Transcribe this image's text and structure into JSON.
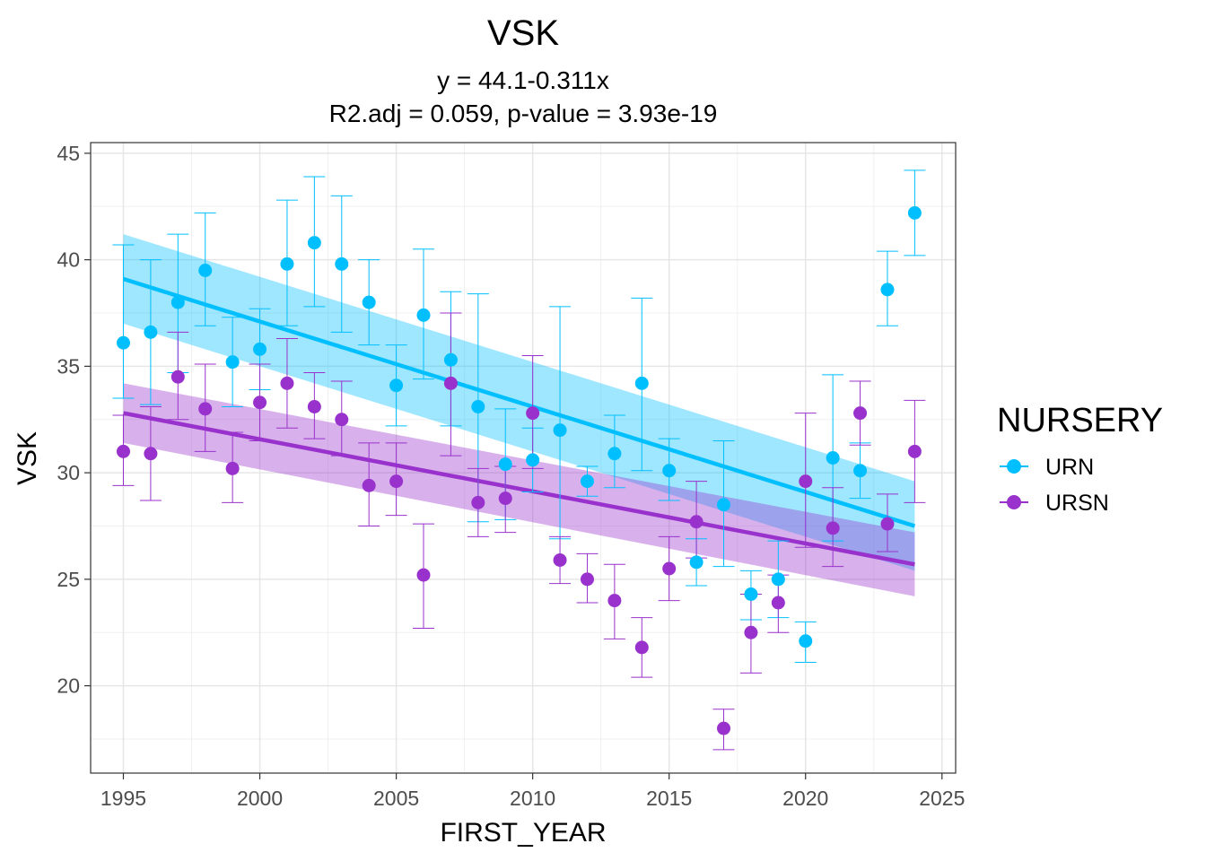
{
  "chart_data": {
    "type": "scatter",
    "title": "VSK",
    "subtitle_lines": [
      "y = 44.1-0.311x",
      "R2.adj = 0.059, p-value = 3.93e-19"
    ],
    "xlabel": "FIRST_YEAR",
    "ylabel": "VSK",
    "xlim": [
      1993.8,
      2025.5
    ],
    "ylim": [
      15.9,
      45.5
    ],
    "x_ticks": [
      1995,
      2000,
      2005,
      2010,
      2015,
      2020,
      2025
    ],
    "y_ticks": [
      20,
      25,
      30,
      35,
      40,
      45
    ],
    "grid": true,
    "legend": {
      "title": "NURSERY",
      "position": "right"
    },
    "series": [
      {
        "name": "URN",
        "color": "#00BFFF",
        "points": [
          {
            "x": 1995,
            "y": 36.1,
            "lo": 33.5,
            "hi": 40.7
          },
          {
            "x": 1996,
            "y": 36.6,
            "lo": 33.2,
            "hi": 40.0
          },
          {
            "x": 1997,
            "y": 38.0,
            "lo": 34.7,
            "hi": 41.2
          },
          {
            "x": 1998,
            "y": 39.5,
            "lo": 36.9,
            "hi": 42.2
          },
          {
            "x": 1999,
            "y": 35.2,
            "lo": 33.1,
            "hi": 37.3
          },
          {
            "x": 2000,
            "y": 35.8,
            "lo": 33.9,
            "hi": 37.7
          },
          {
            "x": 2001,
            "y": 39.8,
            "lo": 36.9,
            "hi": 42.8
          },
          {
            "x": 2002,
            "y": 40.8,
            "lo": 37.8,
            "hi": 43.9
          },
          {
            "x": 2003,
            "y": 39.8,
            "lo": 36.6,
            "hi": 43.0
          },
          {
            "x": 2004,
            "y": 38.0,
            "lo": 36.0,
            "hi": 40.0
          },
          {
            "x": 2005,
            "y": 34.1,
            "lo": 32.2,
            "hi": 36.0
          },
          {
            "x": 2006,
            "y": 37.4,
            "lo": 34.4,
            "hi": 40.5
          },
          {
            "x": 2007,
            "y": 35.3,
            "lo": 32.2,
            "hi": 38.5
          },
          {
            "x": 2008,
            "y": 33.1,
            "lo": 27.7,
            "hi": 38.4
          },
          {
            "x": 2009,
            "y": 30.4,
            "lo": 27.8,
            "hi": 33.0
          },
          {
            "x": 2010,
            "y": 30.6,
            "lo": 29.1,
            "hi": 32.1
          },
          {
            "x": 2011,
            "y": 32.0,
            "lo": 26.9,
            "hi": 37.8
          },
          {
            "x": 2012,
            "y": 29.6,
            "lo": 28.9,
            "hi": 30.3
          },
          {
            "x": 2013,
            "y": 30.9,
            "lo": 29.3,
            "hi": 32.7
          },
          {
            "x": 2014,
            "y": 34.2,
            "lo": 30.1,
            "hi": 38.2
          },
          {
            "x": 2015,
            "y": 30.1,
            "lo": 28.7,
            "hi": 31.6
          },
          {
            "x": 2016,
            "y": 25.8,
            "lo": 24.7,
            "hi": 26.9
          },
          {
            "x": 2017,
            "y": 28.5,
            "lo": 25.6,
            "hi": 31.5
          },
          {
            "x": 2018,
            "y": 24.3,
            "lo": 23.1,
            "hi": 25.4
          },
          {
            "x": 2019,
            "y": 25.0,
            "lo": 23.2,
            "hi": 26.8
          },
          {
            "x": 2020,
            "y": 22.1,
            "lo": 21.1,
            "hi": 23.0
          },
          {
            "x": 2021,
            "y": 30.7,
            "lo": 26.8,
            "hi": 34.6
          },
          {
            "x": 2022,
            "y": 30.1,
            "lo": 28.8,
            "hi": 31.4
          },
          {
            "x": 2023,
            "y": 38.6,
            "lo": 36.9,
            "hi": 40.4
          },
          {
            "x": 2024,
            "y": 42.2,
            "lo": 40.2,
            "hi": 44.2
          }
        ],
        "trend": {
          "x": [
            1995,
            2024
          ],
          "y": [
            39.1,
            27.5
          ],
          "band_lo": [
            37.0,
            25.4
          ],
          "band_hi": [
            41.2,
            29.6
          ]
        }
      },
      {
        "name": "URSN",
        "color": "#9932CC",
        "points": [
          {
            "x": 1995,
            "y": 31.0,
            "lo": 29.4,
            "hi": 32.7
          },
          {
            "x": 1996,
            "y": 30.9,
            "lo": 28.7,
            "hi": 33.1
          },
          {
            "x": 1997,
            "y": 34.5,
            "lo": 32.5,
            "hi": 36.6
          },
          {
            "x": 1998,
            "y": 33.0,
            "lo": 31.0,
            "hi": 35.1
          },
          {
            "x": 1999,
            "y": 30.2,
            "lo": 28.6,
            "hi": 31.9
          },
          {
            "x": 2000,
            "y": 33.3,
            "lo": 31.5,
            "hi": 35.1
          },
          {
            "x": 2001,
            "y": 34.2,
            "lo": 32.1,
            "hi": 36.3
          },
          {
            "x": 2002,
            "y": 33.1,
            "lo": 31.6,
            "hi": 34.7
          },
          {
            "x": 2003,
            "y": 32.5,
            "lo": 30.8,
            "hi": 34.3
          },
          {
            "x": 2004,
            "y": 29.4,
            "lo": 27.5,
            "hi": 31.4
          },
          {
            "x": 2005,
            "y": 29.6,
            "lo": 28.0,
            "hi": 31.4
          },
          {
            "x": 2006,
            "y": 25.2,
            "lo": 22.7,
            "hi": 27.6
          },
          {
            "x": 2007,
            "y": 34.2,
            "lo": 30.8,
            "hi": 37.5
          },
          {
            "x": 2008,
            "y": 28.6,
            "lo": 27.0,
            "hi": 30.2
          },
          {
            "x": 2009,
            "y": 28.8,
            "lo": 27.2,
            "hi": 30.3
          },
          {
            "x": 2010,
            "y": 32.8,
            "lo": 30.2,
            "hi": 35.5
          },
          {
            "x": 2011,
            "y": 25.9,
            "lo": 24.8,
            "hi": 27.0
          },
          {
            "x": 2012,
            "y": 25.0,
            "lo": 23.9,
            "hi": 26.2
          },
          {
            "x": 2013,
            "y": 24.0,
            "lo": 22.2,
            "hi": 25.7
          },
          {
            "x": 2014,
            "y": 21.8,
            "lo": 20.4,
            "hi": 23.2
          },
          {
            "x": 2015,
            "y": 25.5,
            "lo": 24.0,
            "hi": 27.0
          },
          {
            "x": 2016,
            "y": 27.7,
            "lo": 26.0,
            "hi": 29.6
          },
          {
            "x": 2017,
            "y": 18.0,
            "lo": 17.0,
            "hi": 18.9
          },
          {
            "x": 2018,
            "y": 22.5,
            "lo": 20.6,
            "hi": 24.3
          },
          {
            "x": 2019,
            "y": 23.9,
            "lo": 22.5,
            "hi": 25.2
          },
          {
            "x": 2020,
            "y": 29.6,
            "lo": 26.5,
            "hi": 32.8
          },
          {
            "x": 2021,
            "y": 27.4,
            "lo": 25.6,
            "hi": 29.3
          },
          {
            "x": 2022,
            "y": 32.8,
            "lo": 31.3,
            "hi": 34.3
          },
          {
            "x": 2023,
            "y": 27.6,
            "lo": 26.3,
            "hi": 29.0
          },
          {
            "x": 2024,
            "y": 31.0,
            "lo": 28.6,
            "hi": 33.4
          }
        ],
        "trend": {
          "x": [
            1995,
            2024
          ],
          "y": [
            32.8,
            25.7
          ],
          "band_lo": [
            31.4,
            24.2
          ],
          "band_hi": [
            34.2,
            27.2
          ]
        }
      }
    ]
  }
}
